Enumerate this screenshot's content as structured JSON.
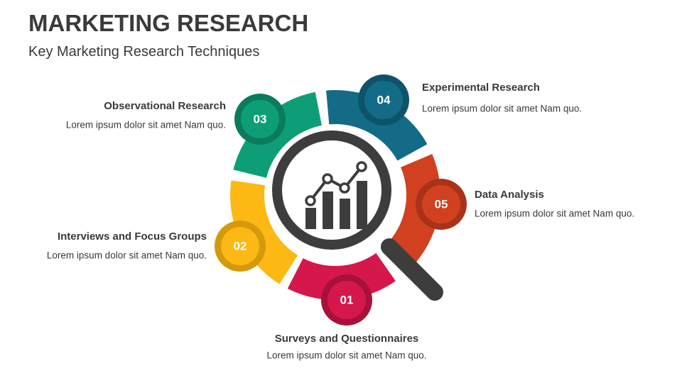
{
  "header": {
    "title": "MARKETING RESEARCH",
    "subtitle": "Key Marketing Research Techniques"
  },
  "items": [
    {
      "number": "01",
      "title": "Surveys and Questionnaires",
      "text": "Lorem ipsum dolor sit amet Nam quo."
    },
    {
      "number": "02",
      "title": "Interviews and Focus Groups",
      "text": "Lorem ipsum dolor sit amet Nam quo."
    },
    {
      "number": "03",
      "title": "Observational Research",
      "text": "Lorem ipsum dolor sit amet Nam quo."
    },
    {
      "number": "04",
      "title": "Experimental Research",
      "text": "Lorem ipsum dolor sit amet Nam quo."
    },
    {
      "number": "05",
      "title": "Data Analysis",
      "text": "Lorem ipsum dolor sit amet Nam quo."
    }
  ]
}
